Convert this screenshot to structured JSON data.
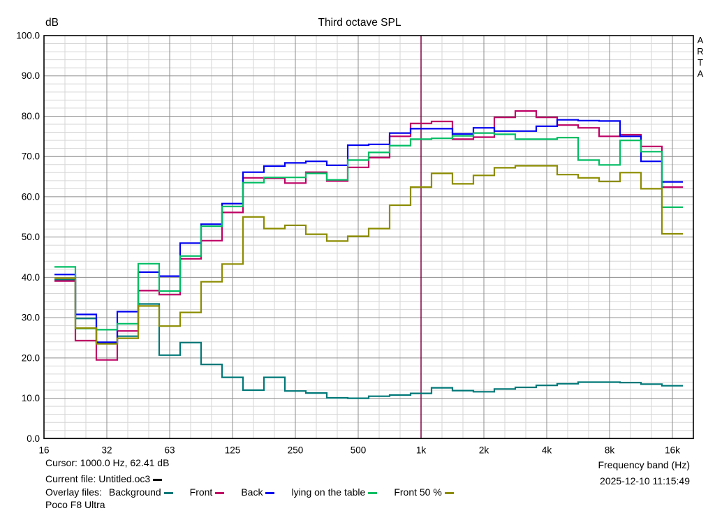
{
  "header": {
    "y_unit": "dB",
    "title": "Third octave SPL",
    "watermark_letters": [
      "A",
      "R",
      "T",
      "A"
    ]
  },
  "status": {
    "cursor_text": "Cursor:  1000.0 Hz, 62.41 dB",
    "current_file_label": "Current file: Untitled.oc3",
    "current_file_color": "#000000",
    "overlay_files_label": "Overlay files:",
    "note": "Poco F8 Ultra",
    "x_axis_label": "Frequency band (Hz)",
    "datetime": "2025-12-10  11:15:49"
  },
  "chart_data": {
    "type": "line",
    "subtype": "third-octave-step",
    "title": "Third octave SPL",
    "ylabel": "dB",
    "xlabel": "Frequency band (Hz)",
    "ylim": [
      0,
      100
    ],
    "y_major_step": 10,
    "y_minor_step": 2,
    "grid": true,
    "legend_position": "bottom",
    "colors": {
      "grid_minor": "#d6d6d6",
      "grid_major": "#8c8c8c",
      "border": "#000000",
      "cursor": "#800040"
    },
    "y_tick_labels": [
      "100.0",
      "90.0",
      "80.0",
      "70.0",
      "60.0",
      "50.0",
      "40.0",
      "30.0",
      "20.0",
      "10.0",
      "0.0"
    ],
    "x_tick_labels": [
      "16",
      "32",
      "63",
      "125",
      "250",
      "500",
      "1k",
      "2k",
      "4k",
      "8k",
      "16k"
    ],
    "categories": [
      "20",
      "25",
      "31.5",
      "40",
      "50",
      "63",
      "80",
      "100",
      "125",
      "160",
      "200",
      "250",
      "315",
      "400",
      "500",
      "630",
      "800",
      "1k",
      "1.25k",
      "1.6k",
      "2k",
      "2.5k",
      "3.15k",
      "4k",
      "5k",
      "6.3k",
      "8k",
      "10k",
      "12.5k",
      "16k"
    ],
    "cursor": {
      "band": "1k",
      "hz": 1000.0,
      "db": 62.41
    },
    "series": [
      {
        "name": "Background",
        "color": "#007878",
        "values": [
          39.4,
          29.8,
          23.7,
          25.4,
          33.4,
          20.7,
          23.8,
          18.4,
          15.2,
          12.0,
          15.2,
          11.8,
          11.3,
          10.1,
          10.0,
          10.5,
          10.8,
          11.2,
          12.6,
          11.9,
          11.6,
          12.3,
          12.7,
          13.2,
          13.6,
          14.0,
          14.0,
          13.9,
          13.5,
          13.1
        ]
      },
      {
        "name": "Front",
        "color": "#be0064",
        "values": [
          39.1,
          24.3,
          19.5,
          26.7,
          36.7,
          35.7,
          44.6,
          49.1,
          56.1,
          64.7,
          64.6,
          63.4,
          66.1,
          63.9,
          67.3,
          69.7,
          75.0,
          78.2,
          78.7,
          74.3,
          74.8,
          79.7,
          81.3,
          79.7,
          77.8,
          77.1,
          75.0,
          75.4,
          72.5,
          62.4
        ]
      },
      {
        "name": "Back",
        "color": "#0000f0",
        "values": [
          40.7,
          30.8,
          23.9,
          31.5,
          41.3,
          40.3,
          48.5,
          53.2,
          58.3,
          66.1,
          67.6,
          68.4,
          68.8,
          67.8,
          72.8,
          73.0,
          75.8,
          76.9,
          76.9,
          75.6,
          77.1,
          76.3,
          76.3,
          77.5,
          79.1,
          78.9,
          78.8,
          75.0,
          68.8,
          63.7
        ]
      },
      {
        "name": "lying on the table",
        "color": "#00be64",
        "values": [
          42.6,
          27.3,
          27.0,
          28.5,
          43.4,
          36.6,
          45.3,
          52.7,
          57.6,
          63.5,
          64.8,
          64.8,
          65.8,
          64.2,
          69.1,
          71.0,
          72.7,
          74.3,
          74.5,
          75.1,
          75.8,
          75.5,
          74.3,
          74.3,
          74.7,
          69.1,
          67.9,
          74.0,
          71.2,
          57.4
        ]
      },
      {
        "name": "Front 50 %",
        "color": "#8c8c00",
        "values": [
          39.8,
          27.4,
          23.5,
          24.9,
          32.9,
          27.9,
          31.3,
          38.9,
          43.3,
          55.0,
          52.1,
          52.9,
          50.7,
          49.0,
          50.2,
          52.1,
          57.9,
          62.4,
          65.8,
          63.2,
          65.3,
          67.2,
          67.7,
          67.7,
          65.5,
          64.7,
          63.8,
          66.0,
          62.0,
          50.8
        ]
      }
    ]
  }
}
